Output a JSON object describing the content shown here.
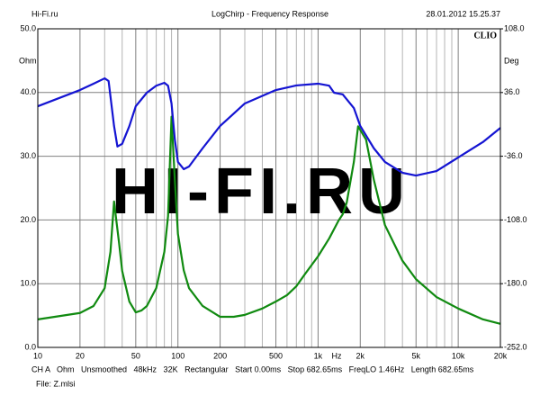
{
  "chart_data": {
    "type": "line",
    "header_left": "Hi-Fi.ru",
    "title": "LogChirp - Frequency Response",
    "header_right": "28.01.2012 15.25.37",
    "brand": "CLIO",
    "ylabel": "Ohm",
    "y2label": "Deg",
    "xlabel": "Hz",
    "watermark": "HI-FI.RU",
    "footer": "CH A   Ohm   Unsmoothed   48kHz   32K   Rectangular   Start 0.00ms   Stop 682.65ms   FreqLO 1.46Hz   Length 682.65ms",
    "file": "File: Z.mlsi",
    "xscale": "log",
    "xlim": [
      10,
      20000
    ],
    "xticks": [
      10,
      20,
      50,
      100,
      200,
      500,
      {
        "value": 1000,
        "label": "1k"
      },
      {
        "value": 2000,
        "label": "2k"
      },
      {
        "value": 5000,
        "label": "5k"
      },
      {
        "value": 10000,
        "label": "10k"
      },
      {
        "value": 20000,
        "label": "20k"
      }
    ],
    "xminor": [
      30,
      40,
      60,
      70,
      80,
      90,
      300,
      400,
      600,
      700,
      800,
      900,
      3000,
      4000,
      6000,
      7000,
      8000,
      9000
    ],
    "ylim": [
      0,
      50
    ],
    "yticks": [
      {
        "value": 0,
        "label": "0.0"
      },
      {
        "value": 10,
        "label": "10.0"
      },
      {
        "value": 20,
        "label": "20.0"
      },
      {
        "value": 30,
        "label": "30.0"
      },
      {
        "value": 40,
        "label": "40.0"
      },
      {
        "value": 50,
        "label": "50.0"
      }
    ],
    "y2lim": [
      -252,
      108
    ],
    "y2ticks": [
      {
        "value": -252,
        "label": "-252.0"
      },
      {
        "value": -180,
        "label": "-180.0"
      },
      {
        "value": -108,
        "label": "-108.0"
      },
      {
        "value": -36,
        "label": "-36.0"
      },
      {
        "value": 36,
        "label": "36.0"
      },
      {
        "value": 108,
        "label": "108.0"
      }
    ],
    "grid": true,
    "series": [
      {
        "color": "#108a10",
        "x": [
          10,
          20,
          25,
          30,
          33,
          35,
          38,
          40,
          45,
          50,
          55,
          60,
          70,
          80,
          85,
          90,
          95,
          100,
          110,
          120,
          150,
          200,
          250,
          300,
          400,
          500,
          600,
          700,
          800,
          1000,
          1200,
          1400,
          1500,
          1600,
          1800,
          1930,
          2200,
          2500,
          3000,
          4000,
          5000,
          7000,
          10000,
          15000,
          20000
        ],
        "values": [
          4.4,
          5.4,
          6.5,
          9.3,
          15,
          22.9,
          16.4,
          12,
          7.2,
          5.5,
          5.8,
          6.5,
          9.3,
          15,
          20.6,
          36.2,
          26.3,
          17.8,
          12.1,
          9.3,
          6.5,
          4.8,
          4.8,
          5.1,
          6.1,
          7.2,
          8.2,
          9.6,
          11.4,
          14.3,
          17.1,
          19.9,
          20.9,
          22.7,
          29.1,
          34.7,
          32.6,
          26.3,
          19.2,
          13.6,
          10.7,
          7.9,
          6.1,
          4.4,
          3.7
        ]
      },
      {
        "color": "#1414d2",
        "axis": "y2",
        "x": [
          10,
          20,
          25,
          30,
          32,
          35,
          37,
          40,
          45,
          50,
          60,
          70,
          80,
          85,
          90,
          95,
          100,
          110,
          120,
          150,
          200,
          300,
          500,
          700,
          1000,
          1200,
          1300,
          1500,
          1800,
          2000,
          2500,
          3000,
          4000,
          5000,
          7000,
          10000,
          15000,
          20000
        ],
        "values": [
          20.5,
          38.8,
          46,
          52,
          49,
          -1.8,
          -25,
          -22,
          -2,
          20.5,
          35.8,
          43.7,
          47,
          43.7,
          23.6,
          -17,
          -42.5,
          -50.6,
          -47.6,
          -27,
          -1.8,
          23.6,
          38.8,
          44,
          46,
          43.7,
          35.8,
          33.8,
          18.5,
          -1.8,
          -27,
          -42.5,
          -54.7,
          -57.8,
          -52.7,
          -37.4,
          -20,
          -4
        ]
      }
    ]
  }
}
